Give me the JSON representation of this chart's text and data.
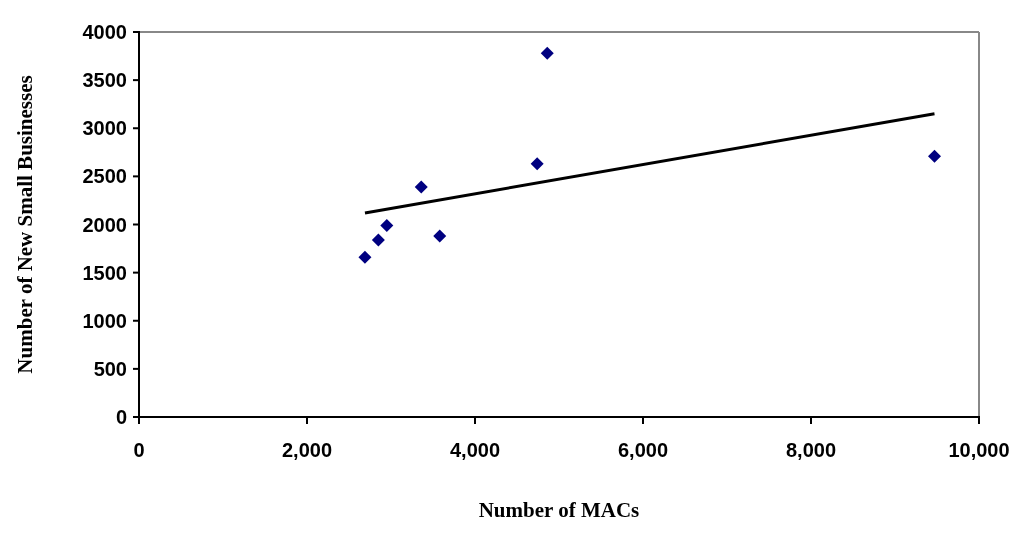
{
  "chart_data": {
    "type": "scatter",
    "xlabel": "Number of MACs",
    "ylabel": "Number of New Small Businesses",
    "xlim": [
      0,
      10000
    ],
    "xticks": [
      {
        "value": 0,
        "label": "0"
      },
      {
        "value": 2000,
        "label": "2,000"
      },
      {
        "value": 4000,
        "label": "4,000"
      },
      {
        "value": 6000,
        "label": "6,000"
      },
      {
        "value": 8000,
        "label": "8,000"
      },
      {
        "value": 10000,
        "label": "10,000"
      }
    ],
    "ylim": [
      0,
      4000
    ],
    "yticks": [
      0,
      500,
      1000,
      1500,
      2000,
      2500,
      3000,
      3500,
      4000
    ],
    "grid": false,
    "series": [
      {
        "color": "#000080",
        "marker": "diamond",
        "x": [
          2690,
          2850,
          2950,
          3360,
          3580,
          4740,
          4860,
          9470
        ],
        "values": [
          1660,
          1840,
          1990,
          2390,
          1880,
          2630,
          3780,
          2710
        ]
      },
      {
        "type": "line",
        "color": "#000000",
        "line_style": "solid",
        "x": [
          2690,
          9470
        ],
        "values": [
          2120,
          3150
        ]
      }
    ]
  }
}
